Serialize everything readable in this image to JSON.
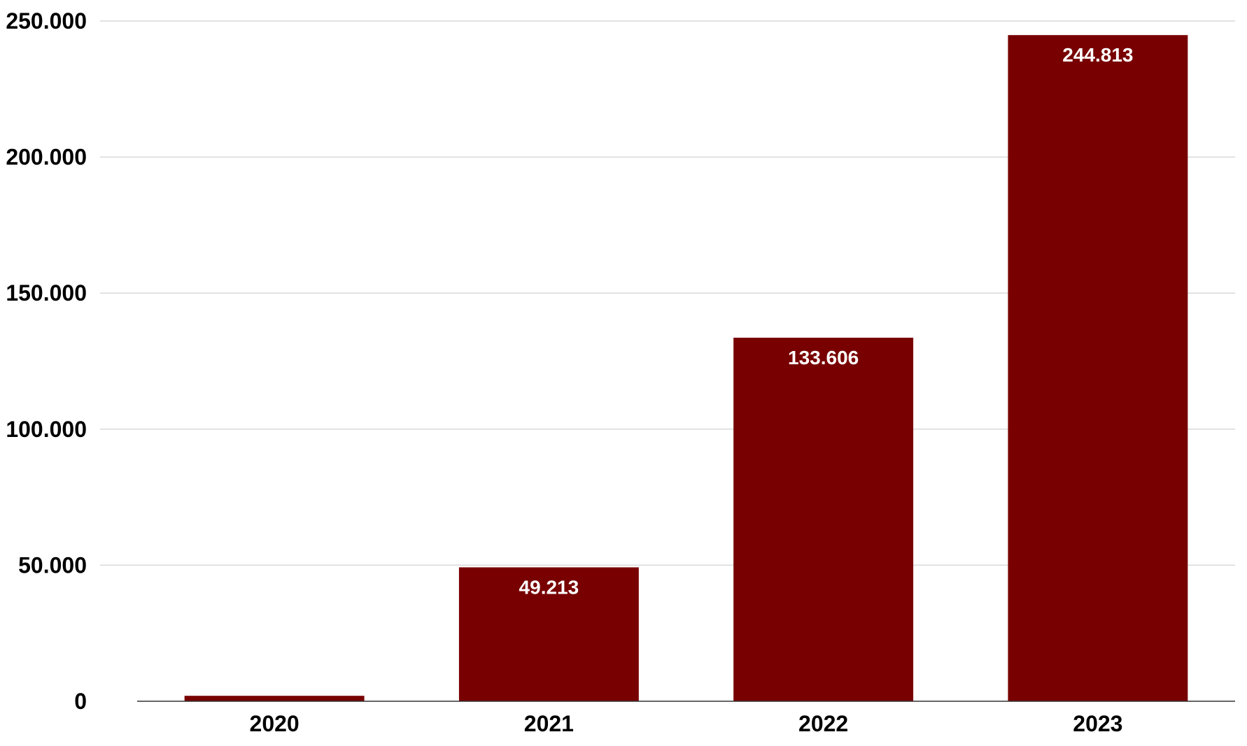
{
  "chart_data": {
    "type": "bar",
    "title": "",
    "xlabel": "",
    "ylabel": "",
    "categories": [
      "2020",
      "2021",
      "2022",
      "2023"
    ],
    "values": [
      2000,
      49213,
      133606,
      244813
    ],
    "data_labels": [
      "",
      "49.213",
      "133.606",
      "244.813"
    ],
    "ylim": [
      0,
      250000
    ],
    "yticks": [
      0,
      50000,
      100000,
      150000,
      200000,
      250000
    ],
    "ytick_labels": [
      "0",
      "50.000",
      "100.000",
      "150.000",
      "200.000",
      "250.000"
    ],
    "grid": true,
    "legend": "none",
    "bar_color": "#780000",
    "gridline_color": "#d9d9d9",
    "text_color": "#000000",
    "data_label_color": "#ffffff"
  }
}
